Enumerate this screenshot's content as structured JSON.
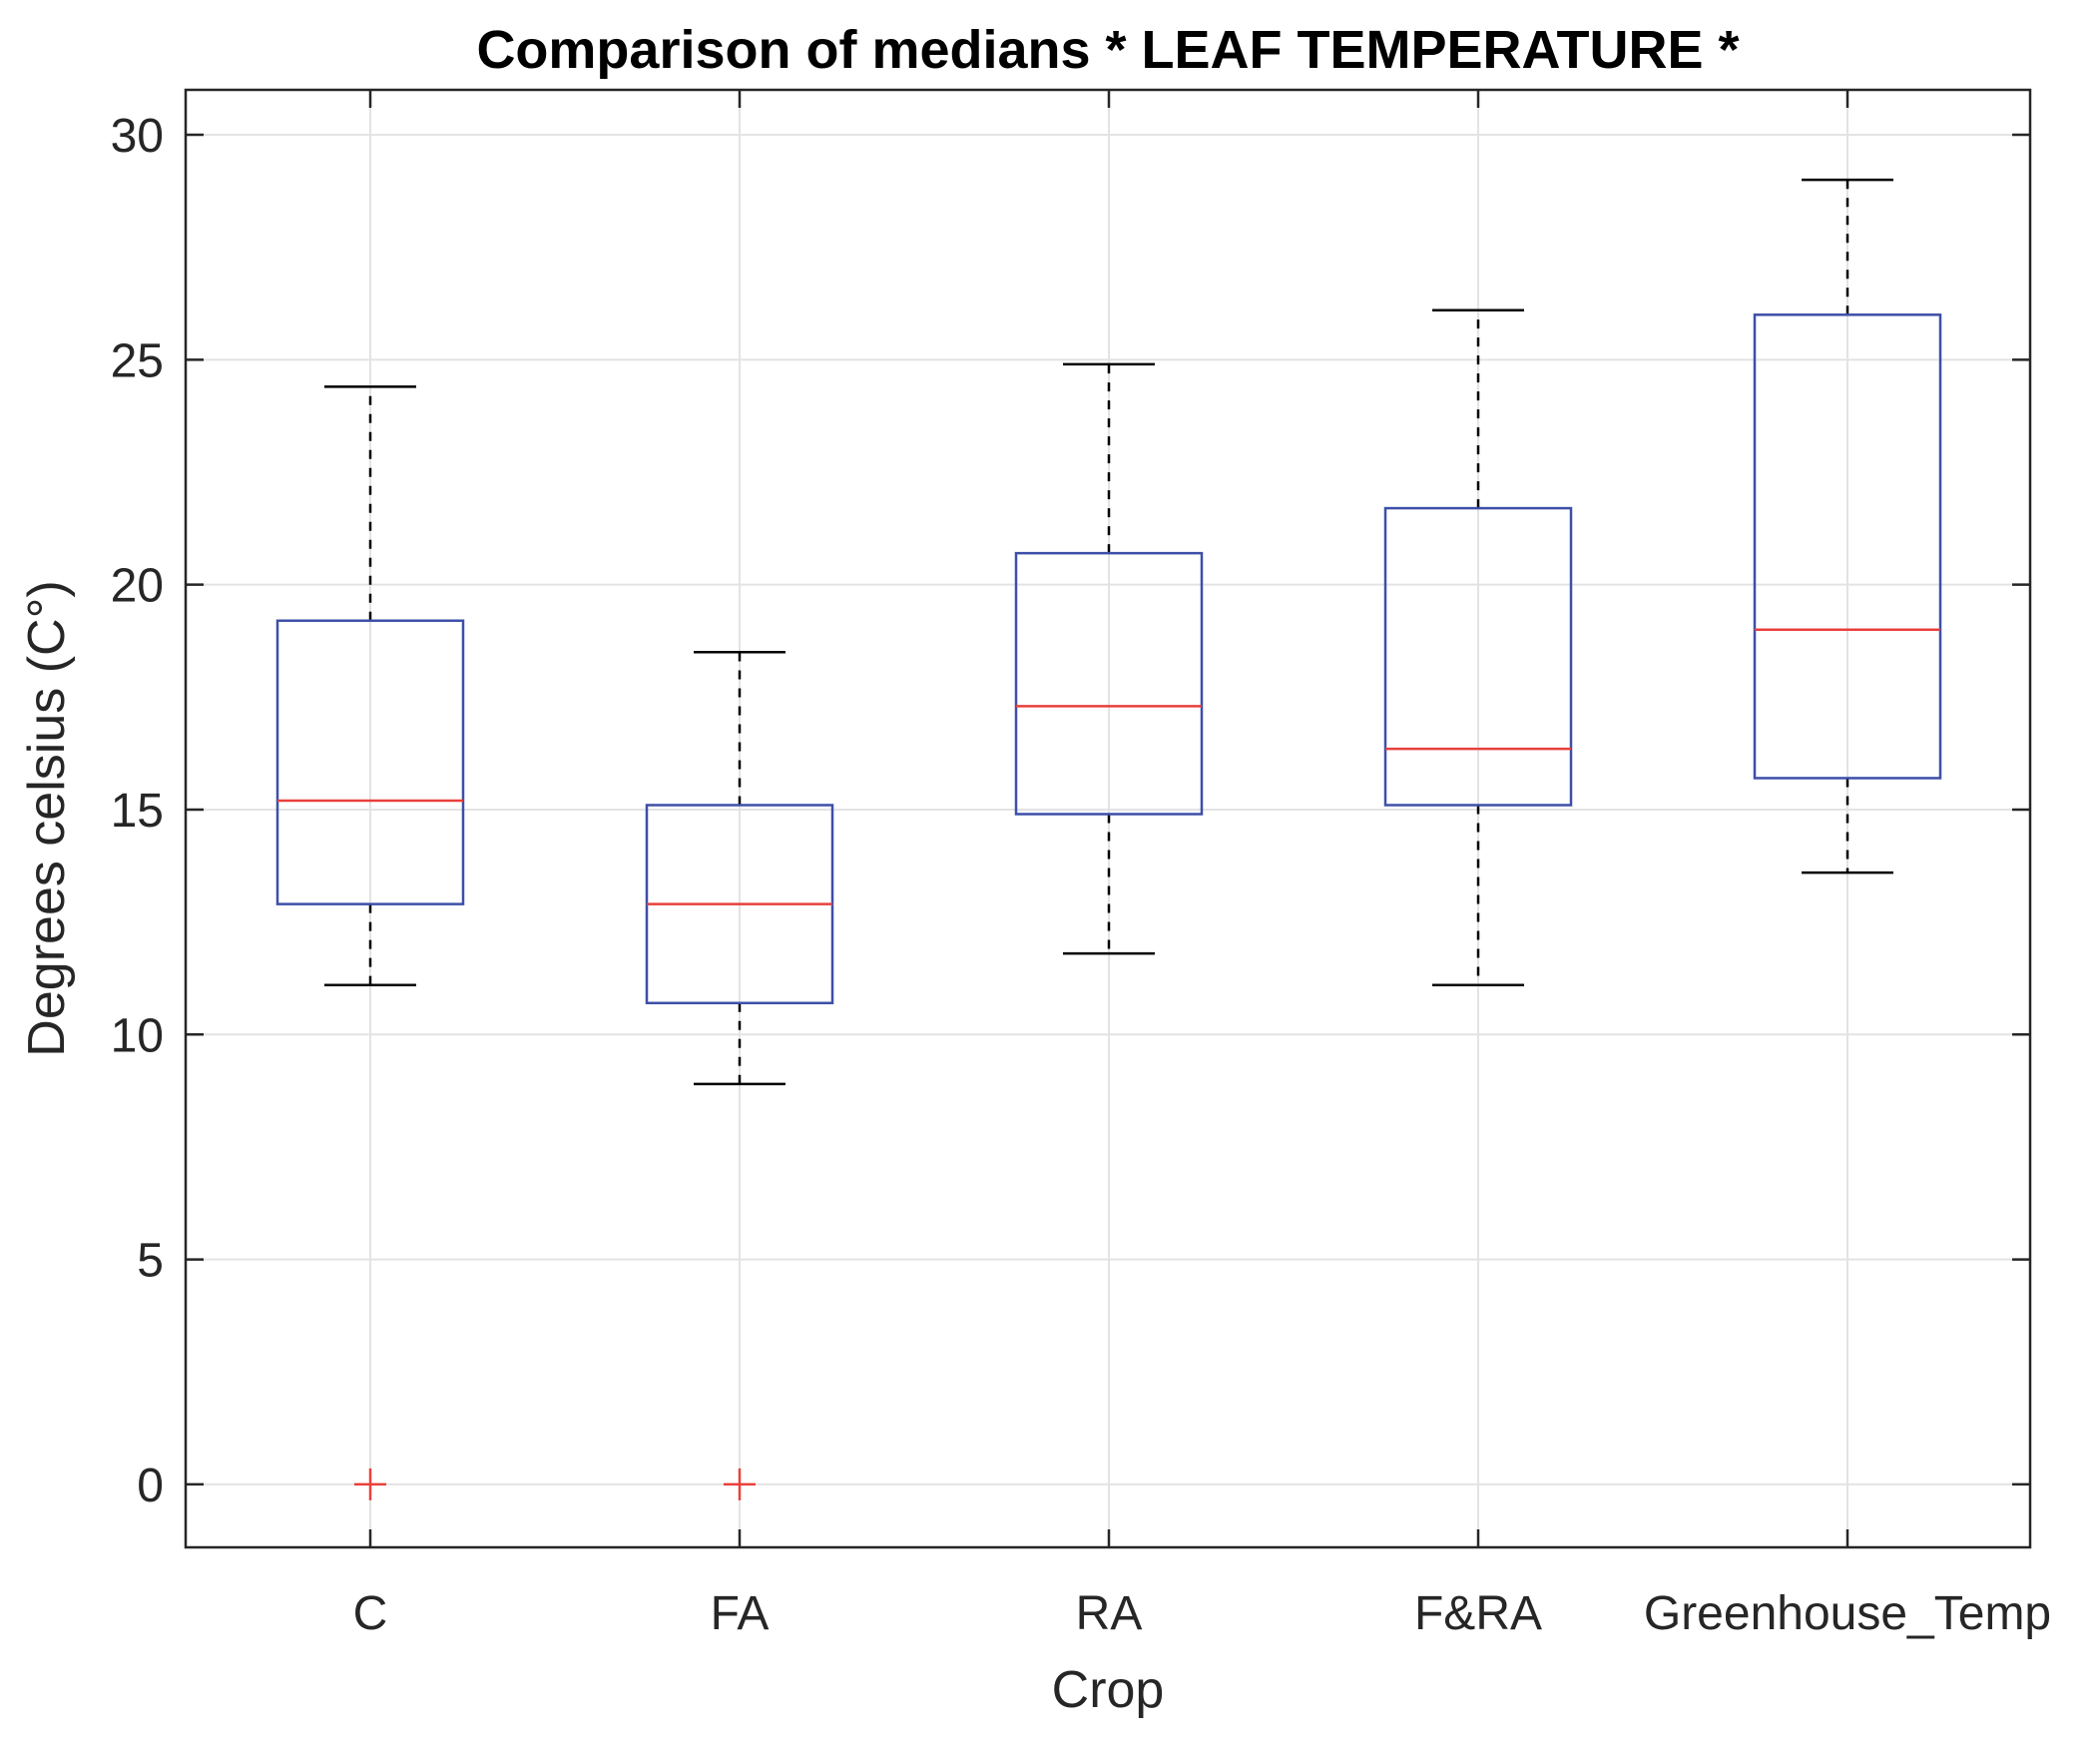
{
  "chart_data": {
    "type": "boxplot",
    "title": "Comparison of medians * LEAF TEMPERATURE *",
    "xlabel": "Crop",
    "ylabel": "Degrees celsius (C°)",
    "ylim": [
      -1.4,
      31
    ],
    "yticks": [
      0,
      5,
      10,
      15,
      20,
      25,
      30
    ],
    "ytick_labels": [
      "0",
      "5",
      "10",
      "15",
      "20",
      "25",
      "30"
    ],
    "grid": true,
    "categories": [
      "C",
      "FA",
      "RA",
      "F&RA",
      "Greenhouse_Temp"
    ],
    "boxes": [
      {
        "category": "C",
        "whisker_low": 11.1,
        "q1": 12.9,
        "median": 15.2,
        "q3": 19.2,
        "whisker_high": 24.4,
        "outliers": [
          0
        ]
      },
      {
        "category": "FA",
        "whisker_low": 8.9,
        "q1": 10.7,
        "median": 12.9,
        "q3": 15.1,
        "whisker_high": 18.5,
        "outliers": [
          0
        ]
      },
      {
        "category": "RA",
        "whisker_low": 11.8,
        "q1": 14.9,
        "median": 17.3,
        "q3": 20.7,
        "whisker_high": 24.9,
        "outliers": []
      },
      {
        "category": "F&RA",
        "whisker_low": 11.1,
        "q1": 15.1,
        "median": 16.35,
        "q3": 21.7,
        "whisker_high": 26.1,
        "outliers": []
      },
      {
        "category": "Greenhouse_Temp",
        "whisker_low": 13.6,
        "q1": 15.7,
        "median": 19.0,
        "q3": 26.0,
        "whisker_high": 29.0,
        "outliers": []
      }
    ],
    "colors": {
      "box": "#3d4fa8",
      "median": "#e8403b",
      "whisker": "#000000",
      "outlier": "#e8403b",
      "grid": "#e3e3e3",
      "axis": "#262626"
    }
  }
}
